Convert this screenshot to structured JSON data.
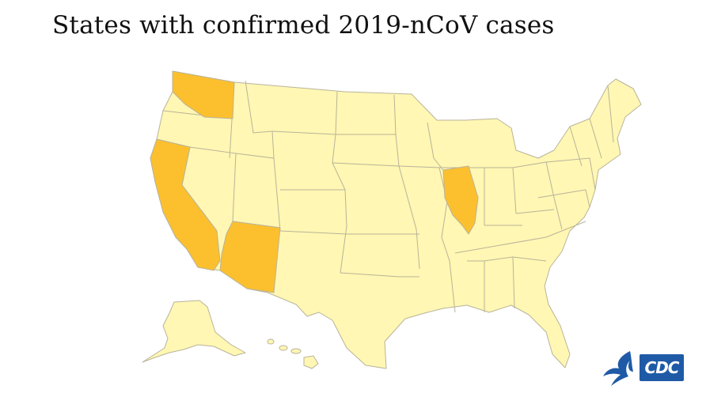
{
  "title": "States with confirmed 2019-nCoV cases",
  "colors": {
    "unaffected": "#fff7b3",
    "affected": "#fcc02e",
    "border": "#b9b39a",
    "cdc_blue": "#1f5aa6"
  },
  "states": [
    {
      "name": "Washington",
      "confirmed": true
    },
    {
      "name": "California",
      "confirmed": true
    },
    {
      "name": "Arizona",
      "confirmed": true
    },
    {
      "name": "Illinois",
      "confirmed": true
    }
  ],
  "logo": {
    "cdc_text": "CDC",
    "hhs_icon": "hhs-eagle-icon"
  }
}
